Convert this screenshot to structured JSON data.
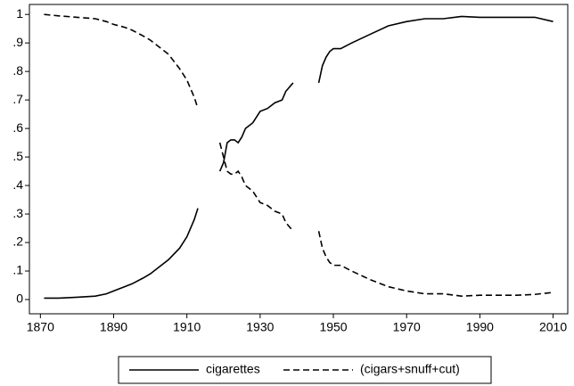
{
  "chart_data": {
    "type": "line",
    "x": [
      1871,
      1875,
      1880,
      1885,
      1888,
      1890,
      1893,
      1895,
      1898,
      1900,
      1903,
      1905,
      1908,
      1910,
      1912,
      1913,
      1916,
      1919,
      1920,
      1921,
      1922,
      1923,
      1924,
      1925,
      1926,
      1928,
      1930,
      1932,
      1934,
      1936,
      1937,
      1939,
      1943,
      1946,
      1947,
      1948,
      1949,
      1950,
      1952,
      1955,
      1960,
      1965,
      1970,
      1975,
      1980,
      1985,
      1990,
      1995,
      2000,
      2005,
      2010
    ],
    "series": [
      {
        "name": "cigarettes",
        "color": "#000000",
        "style": "solid",
        "values": [
          0.005,
          0.005,
          0.008,
          0.012,
          0.02,
          0.03,
          0.045,
          0.055,
          0.075,
          0.09,
          0.12,
          0.14,
          0.18,
          0.22,
          0.28,
          0.32,
          null,
          0.45,
          0.48,
          0.55,
          0.56,
          0.56,
          0.55,
          0.57,
          0.6,
          0.62,
          0.66,
          0.67,
          0.69,
          0.7,
          0.73,
          0.76,
          null,
          0.76,
          0.82,
          0.85,
          0.87,
          0.88,
          0.88,
          0.9,
          0.93,
          0.96,
          0.975,
          0.985,
          0.985,
          0.993,
          0.99,
          0.99,
          0.99,
          0.99,
          0.975
        ]
      },
      {
        "name": "(cigars+snuff+cut)",
        "color": "#000000",
        "style": "dashed",
        "values": [
          1.0,
          0.995,
          0.99,
          0.985,
          0.975,
          0.965,
          0.955,
          0.945,
          0.925,
          0.91,
          0.88,
          0.86,
          0.81,
          0.77,
          0.71,
          0.67,
          null,
          0.55,
          0.5,
          0.45,
          0.44,
          0.44,
          0.45,
          0.43,
          0.4,
          0.38,
          0.34,
          0.33,
          0.31,
          0.3,
          0.27,
          0.24,
          null,
          0.24,
          0.18,
          0.15,
          0.13,
          0.12,
          0.12,
          0.1,
          0.07,
          0.045,
          0.03,
          0.02,
          0.02,
          0.012,
          0.015,
          0.015,
          0.015,
          0.018,
          0.025
        ]
      }
    ],
    "xlim": [
      1867,
      2014
    ],
    "xticks": [
      1870,
      1890,
      1910,
      1930,
      1950,
      1970,
      1990,
      2010
    ],
    "ylim": [
      -0.05,
      1.035
    ],
    "yticks": [
      0,
      {
        "value": 0.1,
        "label": ".1"
      },
      {
        "value": 0.2,
        "label": ".2"
      },
      {
        "value": 0.3,
        "label": ".3"
      },
      {
        "value": 0.4,
        "label": ".4"
      },
      {
        "value": 0.5,
        "label": ".5"
      },
      {
        "value": 0.6,
        "label": ".6"
      },
      {
        "value": 0.7,
        "label": ".7"
      },
      {
        "value": 0.8,
        "label": ".8"
      },
      {
        "value": 0.9,
        "label": ".9"
      },
      1
    ],
    "legend": "bottom"
  }
}
